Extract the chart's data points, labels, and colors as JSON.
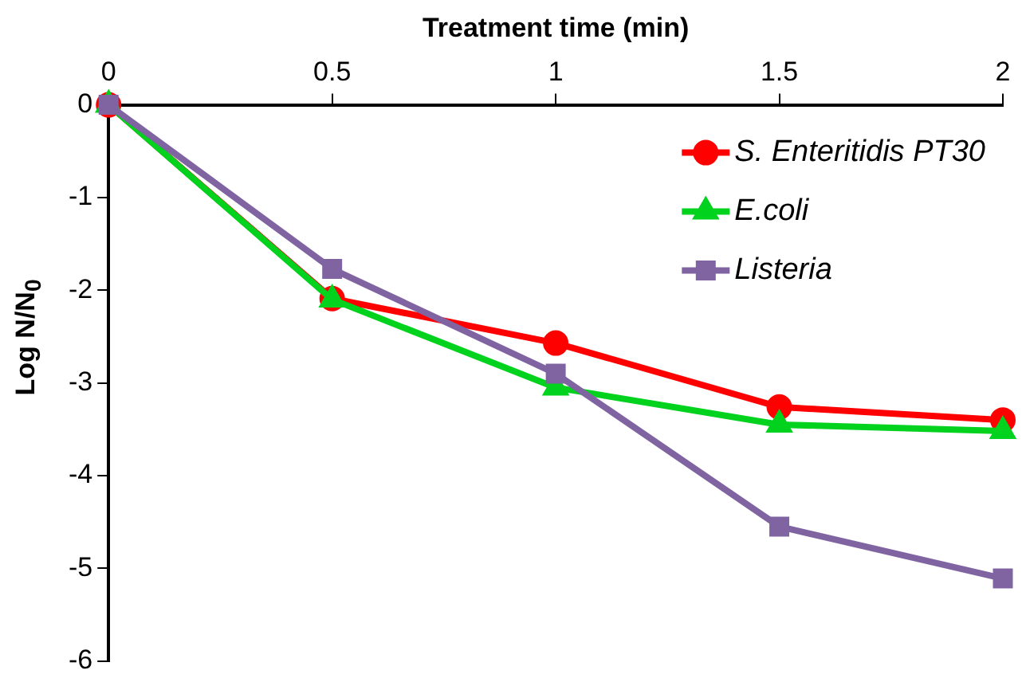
{
  "chart_data": {
    "type": "line",
    "xlabel": "Treatment time (min)",
    "ylabel": "Log N/N$_{0}$",
    "x": [
      0,
      0.5,
      1,
      1.5,
      2
    ],
    "xlim": [
      0,
      2
    ],
    "xticks": [
      0,
      0.5,
      1,
      1.5,
      2
    ],
    "ylim": [
      -6,
      0
    ],
    "yticks": [
      -6,
      -5,
      -4,
      -3,
      -2,
      -1,
      0
    ],
    "grid": false,
    "legend": "top right",
    "series": [
      {
        "name": "S. Enteritidis PT30",
        "color": "#ff0000",
        "marker": "circle",
        "values": [
          0,
          -2.09,
          -2.57,
          -3.26,
          -3.4
        ]
      },
      {
        "name": "E.coli",
        "color": "#00d21e",
        "marker": "triangle",
        "values": [
          0,
          -2.1,
          -3.05,
          -3.45,
          -3.52
        ]
      },
      {
        "name": "Listeria",
        "color": "#8064a2",
        "marker": "square",
        "values": [
          0,
          -1.77,
          -2.9,
          -4.55,
          -5.11
        ]
      }
    ]
  }
}
